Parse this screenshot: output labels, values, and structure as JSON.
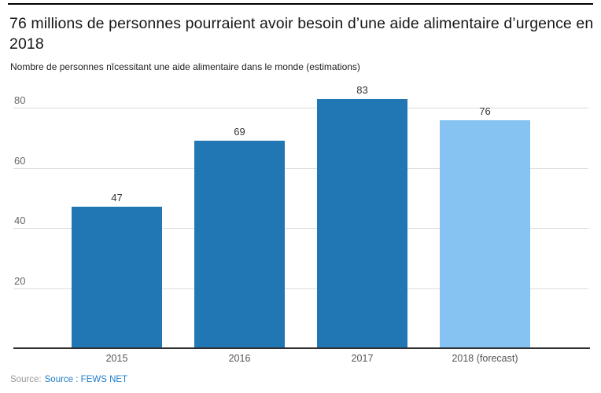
{
  "header": {
    "title": "76 millions de personnes pourraient avoir besoin d’une aide alimentaire d’urgence en 2018",
    "subtitle": "Nombre de personnes nĭcessitant une aide alimentaire dans le monde (estimations)"
  },
  "chart_data": {
    "type": "bar",
    "title": "76 millions de personnes pourraient avoir besoin d’une aide alimentaire d’urgence en 2018",
    "subtitle": "Nombre de personnes nĭcessitant une aide alimentaire dans le monde (estimations)",
    "categories": [
      "2015",
      "2016",
      "2017",
      "2018 (forecast)"
    ],
    "values": [
      47,
      69,
      83,
      76
    ],
    "bar_colors": [
      "#2077b4",
      "#2077b4",
      "#2077b4",
      "#86c3f3"
    ],
    "yticks": [
      20,
      40,
      60,
      80
    ],
    "ylim": [
      0,
      88
    ],
    "xlabel": "",
    "ylabel": "",
    "grid": "horizontal-only",
    "legend": "none",
    "value_labels": true
  },
  "source": {
    "prefix": "Source:",
    "link": "Source : FEWS NET"
  },
  "colors": {
    "bar_dark": "#2077b4",
    "bar_light": "#86c3f3",
    "gridline": "#dcdcdc",
    "axis_line": "#2f2f2f",
    "link_blue": "#1e7cca",
    "top_rule": "#000000"
  }
}
